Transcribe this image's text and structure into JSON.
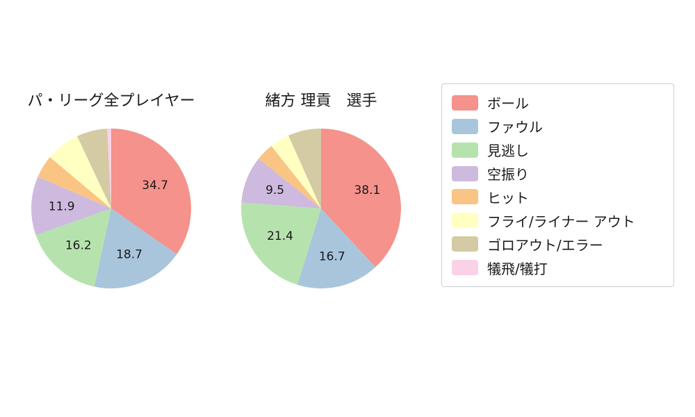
{
  "chart_data": [
    {
      "type": "pie",
      "title": "パ・リーグ全プレイヤー",
      "categories": [
        "ボール",
        "ファウル",
        "見逃し",
        "空振り",
        "ヒット",
        "フライ/ライナー アウト",
        "ゴロアウト/エラー",
        "犠飛/犠打"
      ],
      "values": [
        34.7,
        18.7,
        16.2,
        11.9,
        4.6,
        6.9,
        6.2,
        0.8
      ],
      "colors": [
        "#f4928b",
        "#a8c5dc",
        "#b6e2ae",
        "#cdbade",
        "#fac484",
        "#ffffc2",
        "#d4caa4",
        "#fad2e8"
      ],
      "visible_slice_labels": [
        "34.7",
        "18.7",
        "16.2",
        "11.9"
      ],
      "label_min": 9,
      "start_angle": 90,
      "direction": "clockwise",
      "legend_position": "right"
    },
    {
      "type": "pie",
      "title": "緒方 理貢　選手",
      "categories": [
        "ボール",
        "ファウル",
        "見逃し",
        "空振り",
        "ヒット",
        "フライ/ライナー アウト",
        "ゴロアウト/エラー",
        "犠飛/犠打"
      ],
      "values": [
        38.1,
        16.7,
        21.4,
        9.5,
        3.6,
        4.0,
        6.7,
        0.0
      ],
      "colors": [
        "#f4928b",
        "#a8c5dc",
        "#b6e2ae",
        "#cdbade",
        "#fac484",
        "#ffffc2",
        "#d4caa4",
        "#fad2e8"
      ],
      "visible_slice_labels": [
        "38.1",
        "16.7",
        "21.4",
        "9.5"
      ],
      "label_min": 9,
      "start_angle": 90,
      "direction": "clockwise",
      "legend_position": "right"
    }
  ],
  "legend": {
    "items": [
      {
        "label": "ボール",
        "color": "#f4928b"
      },
      {
        "label": "ファウル",
        "color": "#a8c5dc"
      },
      {
        "label": "見逃し",
        "color": "#b6e2ae"
      },
      {
        "label": "空振り",
        "color": "#cdbade"
      },
      {
        "label": "ヒット",
        "color": "#fac484"
      },
      {
        "label": "フライ/ライナー アウト",
        "color": "#ffffc2"
      },
      {
        "label": "ゴロアウト/エラー",
        "color": "#d4caa4"
      },
      {
        "label": "犠飛/犠打",
        "color": "#fad2e8"
      }
    ]
  }
}
